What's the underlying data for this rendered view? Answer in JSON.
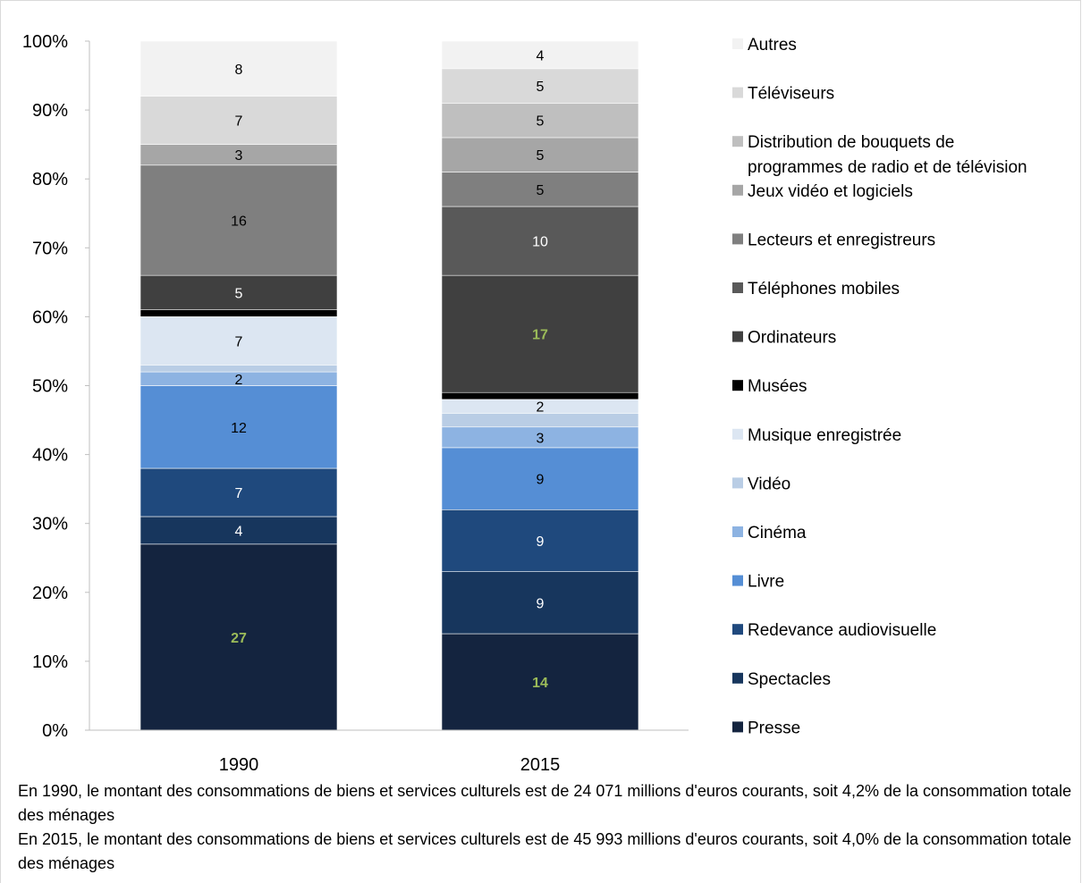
{
  "chart_data": {
    "type": "bar",
    "stacked": true,
    "percent_stacked": true,
    "categories": [
      "1990",
      "2015"
    ],
    "yticks": [
      "0%",
      "10%",
      "20%",
      "30%",
      "40%",
      "50%",
      "60%",
      "70%",
      "80%",
      "90%",
      "100%"
    ],
    "ylim": [
      0,
      100
    ],
    "legend_position": "right",
    "series": [
      {
        "name": "Presse",
        "values": [
          27,
          14
        ],
        "labels": [
          "27",
          "14"
        ],
        "color": "#14243f",
        "label_color": "#9bbb59",
        "label_bold": true
      },
      {
        "name": "Spectacles",
        "values": [
          4,
          9
        ],
        "labels": [
          "4",
          "9"
        ],
        "color": "#17365d",
        "label_color": "#ffffff"
      },
      {
        "name": "Redevance audiovisuelle",
        "values": [
          7,
          9
        ],
        "labels": [
          "7",
          "9"
        ],
        "color": "#1f497d",
        "label_color": "#ffffff"
      },
      {
        "name": "Livre",
        "values": [
          12,
          9
        ],
        "labels": [
          "12",
          "9"
        ],
        "color": "#558ed5",
        "label_color": "#000000"
      },
      {
        "name": "Cinéma",
        "values": [
          2,
          3
        ],
        "labels": [
          "2",
          "3"
        ],
        "color": "#8db3e2",
        "label_color": "#000000"
      },
      {
        "name": "Vidéo",
        "values": [
          1,
          2
        ],
        "labels": [
          "",
          ""
        ],
        "color": "#b9cde5",
        "label_color": "#000000"
      },
      {
        "name": "Musique enregistrée",
        "values": [
          7,
          2
        ],
        "labels": [
          "7",
          "2"
        ],
        "color": "#dce6f2",
        "label_color": "#000000"
      },
      {
        "name": "Musées",
        "values": [
          1,
          1
        ],
        "labels": [
          "",
          ""
        ],
        "color": "#000000",
        "label_color": "#ffffff"
      },
      {
        "name": "Ordinateurs",
        "values": [
          5,
          17
        ],
        "labels": [
          "5",
          "17"
        ],
        "color": "#404040",
        "label_color": "#ffffff",
        "label_colors": [
          "#ffffff",
          "#9bbb59"
        ],
        "label_bold_by_bar": [
          false,
          true
        ]
      },
      {
        "name": "Téléphones mobiles",
        "values": [
          0,
          10
        ],
        "labels": [
          "",
          "10"
        ],
        "color": "#595959",
        "label_color": "#ffffff"
      },
      {
        "name": "Lecteurs et enregistreurs",
        "values": [
          16,
          5
        ],
        "labels": [
          "16",
          "5"
        ],
        "color": "#7f7f7f",
        "label_color": "#000000"
      },
      {
        "name": "Jeux vidéo et logiciels",
        "values": [
          3,
          5
        ],
        "labels": [
          "3",
          "5"
        ],
        "color": "#a6a6a6",
        "label_color": "#000000"
      },
      {
        "name": "Distribution de bouquets de programmes de radio et de télévision",
        "values": [
          0,
          5
        ],
        "labels": [
          "",
          "5"
        ],
        "color": "#bfbfbf",
        "label_color": "#000000"
      },
      {
        "name": "Téléviseurs",
        "values": [
          7,
          5
        ],
        "labels": [
          "7",
          "5"
        ],
        "color": "#d9d9d9",
        "label_color": "#000000"
      },
      {
        "name": "Autres",
        "values": [
          8,
          4
        ],
        "labels": [
          "8",
          "4"
        ],
        "color": "#f2f2f2",
        "label_color": "#000000"
      }
    ],
    "legend_lines": {
      "Distribution de bouquets de programmes de radio et de télévision": [
        "Distribution de bouquets de",
        "programmes de radio et de télévision"
      ]
    }
  },
  "notes": [
    "En 1990, le montant des consommations de biens et services culturels est de 24 071 millions d'euros courants, soit 4,2% de la consommation totale des ménages",
    "En 2015, le montant des consommations de biens et services culturels est de 45 993 millions d'euros courants, soit 4,0% de la consommation totale des ménages"
  ]
}
